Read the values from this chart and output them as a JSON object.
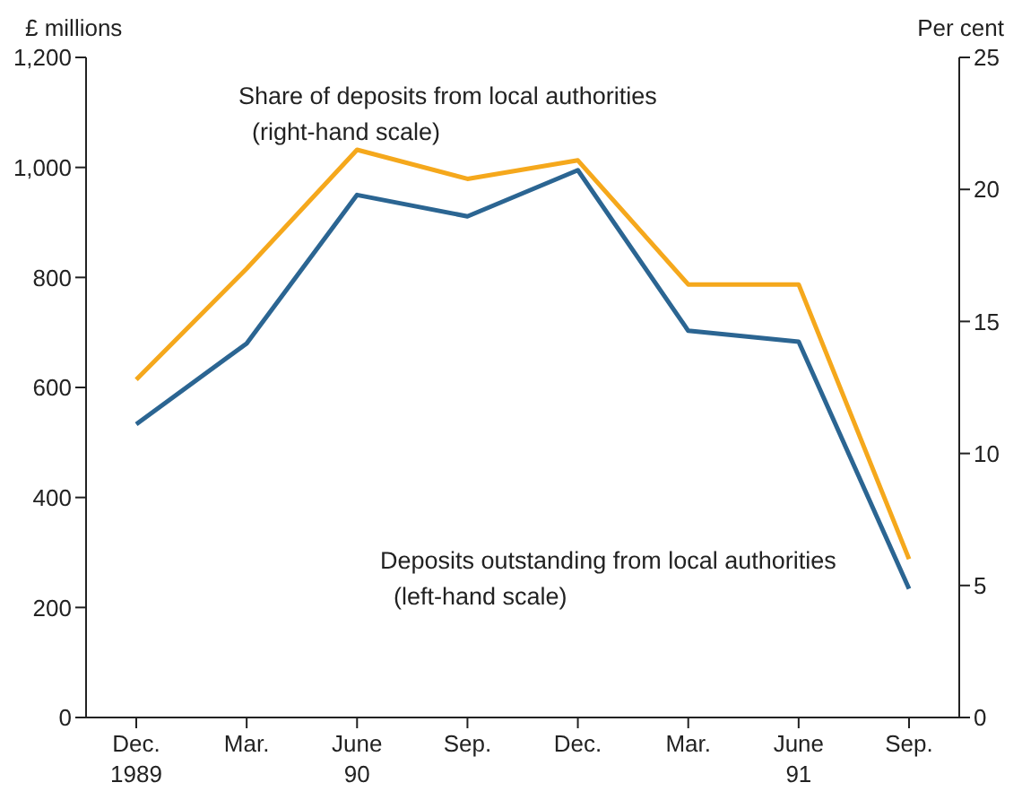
{
  "chart_data": {
    "type": "line",
    "ylabel": "£ millions",
    "y2label": "Per cent",
    "categories": [
      "Dec.\n1989",
      "Mar.",
      "June\n90",
      "Sep.",
      "Dec.",
      "Mar.",
      "June\n91",
      "Sep."
    ],
    "series": [
      {
        "name": "Share of deposits from local authorities\n  (right-hand scale)",
        "color": "#f5a81c",
        "axis": "y2",
        "values": [
          12.8,
          17.0,
          21.5,
          20.4,
          21.1,
          16.4,
          16.4,
          6.0
        ]
      },
      {
        "name": "Deposits outstanding from local authorities\n  (left-hand scale)",
        "color": "#2b6592",
        "values": [
          533,
          680,
          950,
          911,
          995,
          703,
          683,
          234
        ]
      }
    ],
    "ylim": [
      0,
      1200
    ],
    "yticks": [
      0,
      200,
      400,
      600,
      800,
      {
        "value": 1000,
        "label": "1,000"
      },
      {
        "value": 1200,
        "label": "1,200"
      }
    ],
    "y2lim": [
      0,
      25
    ],
    "y2ticks": [
      0,
      5,
      10,
      15,
      20,
      25
    ],
    "grid": false,
    "legend": false,
    "marker": "none",
    "line_style": "solid"
  }
}
